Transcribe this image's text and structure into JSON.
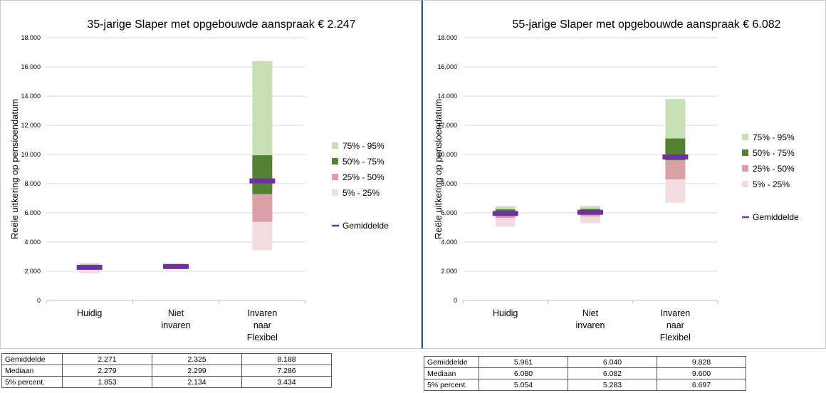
{
  "colors": {
    "p75_95": "#c6e0b4",
    "p50_75": "#548235",
    "p25_50": "#d9a0a8",
    "p5_25": "#f2dcdf",
    "mean": "#7030a0",
    "grid": "#d9d9d9"
  },
  "chart_data": [
    {
      "type": "bar",
      "title": "35-jarige Slaper met opgebouwde aanspraak € 2.247",
      "ylabel": "Reële uitkering op pensioendatum",
      "ylim": [
        0,
        18000
      ],
      "y_ticks": [
        "0",
        "2.000",
        "4.000",
        "6.000",
        "8.000",
        "10.000",
        "12.000",
        "14.000",
        "16.000",
        "18.000"
      ],
      "categories": [
        [
          "Huidig"
        ],
        [
          "Niet",
          "invaren"
        ],
        [
          "Invaren",
          "naar",
          "Flexibel"
        ]
      ],
      "series": [
        {
          "name": "5% - 25%",
          "color_key": "p5_25",
          "low": [
            1853,
            2134,
            3434
          ],
          "high": [
            2100,
            2230,
            5380
          ]
        },
        {
          "name": "25% - 50%",
          "color_key": "p25_50",
          "low": [
            2100,
            2230,
            5380
          ],
          "high": [
            2279,
            2299,
            7286
          ]
        },
        {
          "name": "50% - 75%",
          "color_key": "p50_75",
          "low": [
            2279,
            2299,
            7286
          ],
          "high": [
            2420,
            2390,
            9950
          ]
        },
        {
          "name": "75% - 95%",
          "color_key": "p75_95",
          "low": [
            2420,
            2390,
            9950
          ],
          "high": [
            2560,
            2520,
            16400
          ]
        }
      ],
      "mean": {
        "name": "Gemiddelde",
        "values": [
          2271,
          2325,
          8188
        ]
      },
      "legend_order": [
        "75% - 95%",
        "50% - 75%",
        "25% - 50%",
        "5% - 25%",
        "Gemiddelde"
      ],
      "legend_position": "right"
    },
    {
      "type": "bar",
      "title": "55-jarige Slaper met opgebouwde aanspraak € 6.082",
      "ylabel": "Reële uitkering op pensioendatum",
      "ylim": [
        0,
        18000
      ],
      "y_ticks": [
        "0",
        "2.000",
        "4.000",
        "6.000",
        "8.000",
        "10.000",
        "12.000",
        "14.000",
        "16.000",
        "18.000"
      ],
      "categories": [
        [
          "Huidig"
        ],
        [
          "Niet",
          "invaren"
        ],
        [
          "Invaren",
          "naar",
          "Flexibel"
        ]
      ],
      "series": [
        {
          "name": "5% - 25%",
          "color_key": "p5_25",
          "low": [
            5054,
            5283,
            6697
          ],
          "high": [
            5650,
            5750,
            8300
          ]
        },
        {
          "name": "25% - 50%",
          "color_key": "p25_50",
          "low": [
            5650,
            5750,
            8300
          ],
          "high": [
            6080,
            6082,
            9600
          ]
        },
        {
          "name": "50% - 75%",
          "color_key": "p50_75",
          "low": [
            6080,
            6082,
            9600
          ],
          "high": [
            6250,
            6280,
            11100
          ]
        },
        {
          "name": "75% - 95%",
          "color_key": "p75_95",
          "low": [
            6250,
            6280,
            11100
          ],
          "high": [
            6450,
            6480,
            13800
          ]
        }
      ],
      "mean": {
        "name": "Gemiddelde",
        "values": [
          5961,
          6040,
          9828
        ]
      },
      "legend_order": [
        "75% - 95%",
        "50% - 75%",
        "25% - 50%",
        "5% - 25%",
        "Gemiddelde"
      ],
      "legend_position": "right"
    }
  ],
  "tables": {
    "left": {
      "rows": [
        {
          "label": "Gemiddelde",
          "values": [
            "2.271",
            "2.325",
            "8.188"
          ]
        },
        {
          "label": "Mediaan",
          "values": [
            "2.279",
            "2.299",
            "7.286"
          ]
        },
        {
          "label": "5% percent.",
          "values": [
            "1.853",
            "2.134",
            "3.434"
          ]
        }
      ]
    },
    "right": {
      "rows": [
        {
          "label": "Gemiddelde",
          "values": [
            "5.961",
            "6.040",
            "9.828"
          ]
        },
        {
          "label": "Mediaan",
          "values": [
            "6.080",
            "6.082",
            "9.600"
          ]
        },
        {
          "label": "5% percent.",
          "values": [
            "5.054",
            "5.283",
            "6.697"
          ]
        }
      ]
    }
  }
}
